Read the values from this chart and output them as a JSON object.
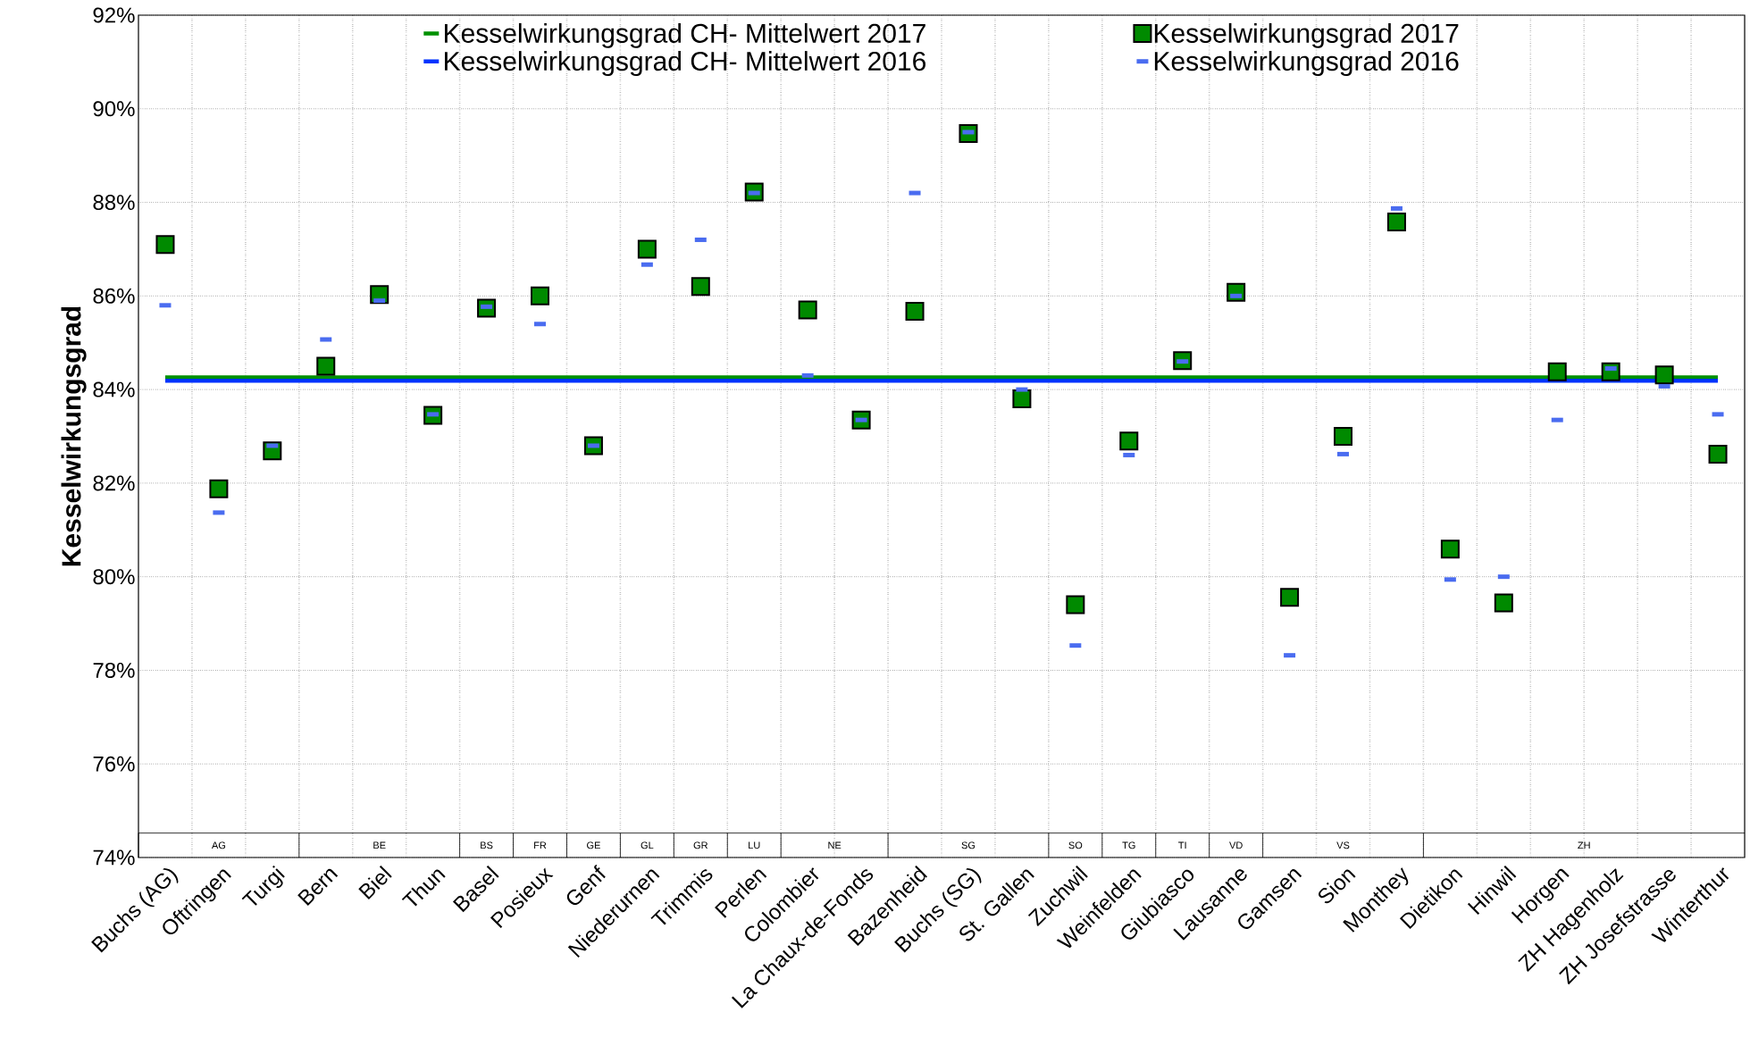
{
  "chart_data": {
    "type": "scatter",
    "ylabel": "Kesselwirkungsgrad",
    "categories": [
      "Buchs (AG)",
      "Oftringen",
      "Turgi",
      "Bern",
      "Biel",
      "Thun",
      "Basel",
      "Posieux",
      "Genf",
      "Niederurnen",
      "Trimmis",
      "Perlen",
      "Colombier",
      "La Chaux-de-Fonds",
      "Bazenheid",
      "Buchs (SG)",
      "St. Gallen",
      "Zuchwil",
      "Weinfelden",
      "Giubiasco",
      "Lausanne",
      "Gamsen",
      "Sion",
      "Monthey",
      "Dietikon",
      "Hinwil",
      "Horgen",
      "ZH Hagenholz",
      "ZH Josefstrasse",
      "Winterthur"
    ],
    "series": [
      {
        "name": "Kesselwirkungsgrad CH- Mittelwert 2017",
        "type": "line",
        "marker": "none",
        "line_style": "solid",
        "color": "#009000",
        "values": [
          84.26,
          84.26,
          84.26,
          84.26,
          84.26,
          84.26,
          84.26,
          84.26,
          84.26,
          84.26,
          84.26,
          84.26,
          84.26,
          84.26,
          84.26,
          84.26,
          84.26,
          84.26,
          84.26,
          84.26,
          84.26,
          84.26,
          84.26,
          84.26,
          84.26,
          84.26,
          84.26,
          84.26,
          84.26,
          84.26
        ]
      },
      {
        "name": "Kesselwirkungsgrad 2017",
        "type": "scatter",
        "marker": "square",
        "color": "#008a00",
        "values": [
          87.1,
          81.88,
          82.69,
          84.5,
          86.03,
          83.45,
          85.74,
          86.0,
          82.8,
          87.0,
          86.2,
          88.22,
          85.7,
          83.35,
          85.67,
          89.47,
          83.8,
          79.4,
          82.9,
          84.62,
          86.08,
          79.56,
          83.0,
          87.58,
          80.59,
          79.44,
          84.38,
          84.38,
          84.31,
          82.62
        ]
      },
      {
        "name": "Kesselwirkungsgrad CH- Mittelwert 2016",
        "type": "line",
        "marker": "none",
        "line_style": "solid",
        "color": "#0033ff",
        "values": [
          84.19,
          84.19,
          84.19,
          84.19,
          84.19,
          84.19,
          84.19,
          84.19,
          84.19,
          84.19,
          84.19,
          84.19,
          84.19,
          84.19,
          84.19,
          84.19,
          84.19,
          84.19,
          84.19,
          84.19,
          84.19,
          84.19,
          84.19,
          84.19,
          84.19,
          84.19,
          84.19,
          84.19,
          null,
          84.19
        ]
      },
      {
        "name": "Kesselwirkungsgrad 2016",
        "color": "#4a6cf0",
        "values": [
          85.8,
          81.37,
          82.8,
          85.07,
          85.9,
          83.47,
          85.77,
          85.4,
          82.8,
          86.67,
          87.2,
          88.2,
          84.3,
          83.35,
          88.2,
          89.5,
          84.0,
          78.53,
          82.6,
          84.6,
          86.0,
          78.32,
          82.62,
          87.87,
          79.94,
          80.0,
          83.35,
          84.45,
          84.07,
          83.47
        ]
      }
    ],
    "ylim": [
      74,
      92
    ],
    "yticks": [
      {
        "value": 74,
        "label": "74%"
      },
      {
        "value": 76,
        "label": "76%"
      },
      {
        "value": 78,
        "label": "78%"
      },
      {
        "value": 80,
        "label": "80%"
      },
      {
        "value": 82,
        "label": "82%"
      },
      {
        "value": 84,
        "label": "84%"
      },
      {
        "value": 86,
        "label": "86%"
      },
      {
        "value": 88,
        "label": "88%"
      },
      {
        "value": 90,
        "label": "90%"
      },
      {
        "value": 92,
        "label": "92%"
      }
    ],
    "grid": true,
    "legend": "top",
    "annotations": [
      "AG",
      "BE",
      "BS",
      "FR",
      "GE",
      "GL",
      "GR",
      "LU",
      "NE",
      "SG",
      "SO",
      "TG",
      "TI",
      "VD",
      "VS",
      "ZH"
    ]
  }
}
